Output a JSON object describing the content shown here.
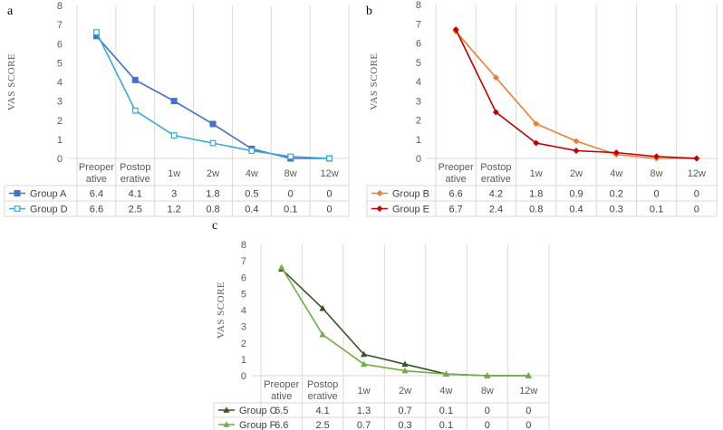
{
  "chart_data": [
    {
      "panel": "a",
      "type": "line",
      "ylabel": "VAS SCORE",
      "ylim": [
        0,
        8
      ],
      "yticks": [
        "0",
        "1",
        "2",
        "3",
        "4",
        "5",
        "6",
        "7",
        "8"
      ],
      "categories": [
        [
          "Preoper",
          "ative"
        ],
        [
          "Postop",
          "erative"
        ],
        [
          "1w"
        ],
        [
          "2w"
        ],
        [
          "4w"
        ],
        [
          "8w"
        ],
        [
          "12w"
        ]
      ],
      "series": [
        {
          "name": "Group A",
          "color": "#4472C4",
          "marker": "square-filled",
          "values": [
            6.4,
            4.1,
            3,
            1.8,
            0.5,
            0,
            0
          ]
        },
        {
          "name": "Group D",
          "color": "#33A9E0",
          "marker": "square-open",
          "values": [
            6.6,
            2.5,
            1.2,
            0.8,
            0.4,
            0.1,
            0
          ]
        }
      ]
    },
    {
      "panel": "b",
      "type": "line",
      "ylabel": "VAS SCORE",
      "ylim": [
        0,
        8
      ],
      "yticks": [
        "0",
        "1",
        "2",
        "3",
        "4",
        "5",
        "6",
        "7",
        "8"
      ],
      "categories": [
        [
          "Preoper",
          "ative"
        ],
        [
          "Postop",
          "erative"
        ],
        [
          "1w"
        ],
        [
          "2w"
        ],
        [
          "4w"
        ],
        [
          "8w"
        ],
        [
          "12w"
        ]
      ],
      "series": [
        {
          "name": "Group B",
          "color": "#ED7D31",
          "marker": "diamond",
          "values": [
            6.6,
            4.2,
            1.8,
            0.9,
            0.2,
            0,
            0
          ]
        },
        {
          "name": "Group E",
          "color": "#C00000",
          "marker": "diamond",
          "values": [
            6.7,
            2.4,
            0.8,
            0.4,
            0.3,
            0.1,
            0
          ]
        }
      ]
    },
    {
      "panel": "c",
      "type": "line",
      "ylabel": "VAS SCORE",
      "ylim": [
        0,
        8
      ],
      "yticks": [
        "0",
        "1",
        "2",
        "3",
        "4",
        "5",
        "6",
        "7",
        "8"
      ],
      "categories": [
        [
          "Preoper",
          "ative"
        ],
        [
          "Postop",
          "erative"
        ],
        [
          "1w"
        ],
        [
          "2w"
        ],
        [
          "4w"
        ],
        [
          "8w"
        ],
        [
          "12w"
        ]
      ],
      "series": [
        {
          "name": "Group C",
          "color": "#375623",
          "marker": "triangle",
          "values": [
            6.5,
            4.1,
            1.3,
            0.7,
            0.1,
            0,
            0
          ]
        },
        {
          "name": "Group F",
          "color": "#70AD47",
          "marker": "triangle",
          "values": [
            6.6,
            2.5,
            0.7,
            0.3,
            0.1,
            0,
            0
          ]
        }
      ]
    }
  ]
}
